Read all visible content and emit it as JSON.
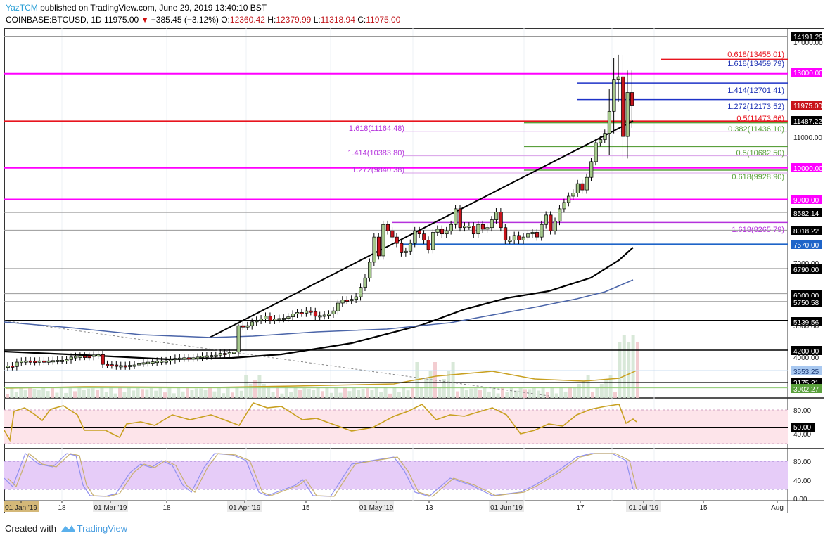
{
  "header": {
    "author": "YazTCM",
    "published": "published on TradingView.com, June 29, 2019 13:40:10 BST",
    "symbol": "COINBASE:BTCUSD, 1D",
    "last": "11975.00",
    "change": "−385.45 (−3.12%)",
    "o_label": "O:",
    "o": "12360.42",
    "h_label": "H:",
    "h": "12379.99",
    "l_label": "L:",
    "l": "11318.94",
    "c_label": "C:",
    "c": "11975.00"
  },
  "footer": {
    "created_with": "Created with",
    "brand": "TradingView"
  },
  "colors": {
    "up": "#a5c88c",
    "down": "#c8141c",
    "magenta": "#ff00ff",
    "blue_level": "#1e64c8",
    "red_fib": "#e8141e",
    "green_fib": "#5aa03c",
    "purple_fib": "#b432dc",
    "rsi_line": "#c8a020",
    "rsi_band": "#fde4ea",
    "stoch_band": "#e6ccf8",
    "ma_black": "#000000",
    "ma_blue": "#4a64a8"
  },
  "chart_data": {
    "type": "candlestick",
    "title": "COINBASE:BTCUSD, 1D",
    "xlabel": "",
    "ylabel": "Price (USD)",
    "ylim": [
      3000,
      14300
    ],
    "x_ticks": [
      "01 Jan '19",
      "18",
      "01 Mar '19",
      "18",
      "01 Apr '19",
      "15",
      "01 May '19",
      "13",
      "01 Jun '19",
      "17",
      "01 Jul '19",
      "15",
      "Aug"
    ],
    "y_ticks": [
      "14000.00",
      "11000.00",
      "7000.00",
      "5000.00",
      "4000.00"
    ],
    "price_axis_labels": [
      {
        "value": "14191.29",
        "bg": "#000000"
      },
      {
        "value": "13000.00",
        "bg": "#ff00ff"
      },
      {
        "value": "11975.00",
        "bg": "#c8141c"
      },
      {
        "value": "11487.22",
        "bg": "#000000"
      },
      {
        "value": "10000.00",
        "bg": "#ff00ff"
      },
      {
        "value": "9000.00",
        "bg": "#ff00ff"
      },
      {
        "value": "8582.14",
        "bg": "#000000"
      },
      {
        "value": "8018.22",
        "bg": "#000000"
      },
      {
        "value": "7570.00",
        "bg": "#1e64c8"
      },
      {
        "value": "6790.00",
        "bg": "#000000"
      },
      {
        "value": "6000.00",
        "bg": "#000000"
      },
      {
        "value": "5750.58",
        "bg": "#000000"
      },
      {
        "value": "5139.56",
        "bg": "#000000"
      },
      {
        "value": "4200.00",
        "bg": "#000000"
      },
      {
        "value": "3553.25",
        "bg": "#a8c8f0"
      },
      {
        "value": "3175.21",
        "bg": "#000000"
      },
      {
        "value": "3002.27",
        "bg": "#5aa03c"
      }
    ],
    "fib_annotations": [
      {
        "label": "0.618(13455.01)",
        "color": "#e8141e"
      },
      {
        "label": "1.618(13459.79)",
        "color": "#1e32b4"
      },
      {
        "label": "1.414(12701.41)",
        "color": "#1e32b4"
      },
      {
        "label": "1.272(12173.52)",
        "color": "#1e32b4"
      },
      {
        "label": "0.5(11473.66)",
        "color": "#e8141e"
      },
      {
        "label": "0.382(11436.10)",
        "color": "#5aa03c"
      },
      {
        "label": "0.5(10682.50)",
        "color": "#5aa03c"
      },
      {
        "label": "0.618(9928.90)",
        "color": "#5aa03c"
      },
      {
        "label": "1.618(11164.48)",
        "color": "#b432dc"
      },
      {
        "label": "1.414(10383.80)",
        "color": "#b432dc"
      },
      {
        "label": "1.272(9840.38)",
        "color": "#b432dc"
      },
      {
        "label": "1.618(8265.79)",
        "color": "#b432dc"
      }
    ],
    "ohlc_last": {
      "open": 12360.42,
      "high": 12379.99,
      "low": 11318.94,
      "close": 11975.0
    },
    "series": [
      {
        "name": "MA black (100)",
        "values_approx": [
          4150,
          4000,
          3950,
          3950,
          4000,
          4300,
          5300,
          6300,
          7000,
          7570
        ]
      },
      {
        "name": "MA blue (200)",
        "values_approx": [
          5100,
          5000,
          4950,
          5000,
          5150,
          5350,
          5750,
          6300
        ]
      }
    ],
    "rsi": {
      "ylim": [
        0,
        100
      ],
      "ticks": [
        "80.00",
        "50.00",
        "40.00"
      ],
      "band": [
        30,
        70
      ],
      "level": 50
    },
    "stoch_rsi": {
      "ylim": [
        0,
        100
      ],
      "ticks": [
        "80.00",
        "40.00",
        "0.00"
      ],
      "band": [
        20,
        80
      ]
    }
  }
}
